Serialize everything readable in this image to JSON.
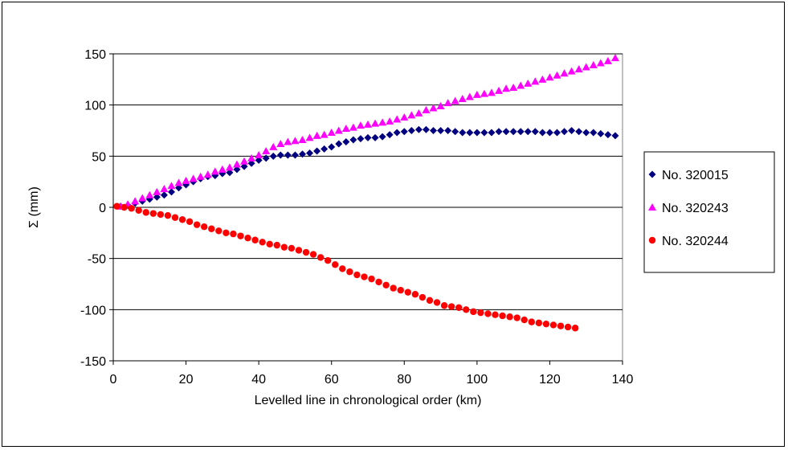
{
  "chart_data": {
    "type": "scatter",
    "xlabel": "Levelled line in chronological order (km)",
    "ylabel": "Σ (mm)",
    "xlim": [
      0,
      140
    ],
    "ylim": [
      -150,
      150
    ],
    "xticks": [
      0,
      20,
      40,
      60,
      80,
      100,
      120,
      140
    ],
    "yticks": [
      -150,
      -100,
      -50,
      0,
      50,
      100,
      150
    ],
    "grid": "horizontal",
    "legend_position": "right",
    "series": [
      {
        "name": "No. 320015",
        "color": "#000080",
        "marker": "diamond",
        "x": [
          2,
          4,
          6,
          8,
          10,
          12,
          14,
          16,
          18,
          20,
          22,
          24,
          26,
          28,
          30,
          32,
          34,
          36,
          38,
          40,
          42,
          44,
          46,
          48,
          50,
          52,
          54,
          56,
          58,
          60,
          62,
          64,
          66,
          68,
          70,
          72,
          74,
          76,
          78,
          80,
          82,
          84,
          86,
          88,
          90,
          92,
          94,
          96,
          98,
          100,
          102,
          104,
          106,
          108,
          110,
          112,
          114,
          116,
          118,
          120,
          122,
          124,
          126,
          128,
          130,
          132,
          134,
          136,
          138
        ],
        "y": [
          1,
          2,
          4,
          6,
          8,
          10,
          12,
          15,
          19,
          22,
          25,
          28,
          30,
          31,
          33,
          34,
          37,
          40,
          43,
          46,
          48,
          50,
          51,
          51,
          51,
          52,
          53,
          55,
          57,
          59,
          62,
          64,
          66,
          67,
          68,
          68,
          69,
          71,
          73,
          74,
          75,
          76,
          76,
          75,
          75,
          75,
          74,
          73,
          73,
          73,
          73,
          73,
          74,
          74,
          74,
          74,
          74,
          74,
          73,
          73,
          73,
          74,
          75,
          74,
          73,
          73,
          72,
          71,
          70
        ]
      },
      {
        "name": "No. 320243",
        "color": "#FF00FF",
        "marker": "triangle",
        "x": [
          2,
          4,
          6,
          8,
          10,
          12,
          14,
          16,
          18,
          20,
          22,
          24,
          26,
          28,
          30,
          32,
          34,
          36,
          38,
          40,
          42,
          44,
          46,
          48,
          50,
          52,
          54,
          56,
          58,
          60,
          62,
          64,
          66,
          68,
          70,
          72,
          74,
          76,
          78,
          80,
          82,
          84,
          86,
          88,
          90,
          92,
          94,
          96,
          98,
          100,
          102,
          104,
          106,
          108,
          110,
          112,
          114,
          116,
          118,
          120,
          122,
          124,
          126,
          128,
          130,
          132,
          134,
          136,
          138
        ],
        "y": [
          1,
          3,
          6,
          9,
          12,
          15,
          18,
          21,
          24,
          26,
          28,
          30,
          32,
          35,
          37,
          39,
          42,
          45,
          48,
          51,
          55,
          59,
          62,
          64,
          65,
          66,
          68,
          70,
          71,
          73,
          75,
          77,
          78,
          80,
          81,
          82,
          83,
          84,
          86,
          88,
          90,
          92,
          95,
          97,
          99,
          102,
          104,
          106,
          108,
          110,
          111,
          112,
          114,
          116,
          117,
          119,
          121,
          123,
          125,
          127,
          129,
          131,
          133,
          135,
          137,
          139,
          141,
          143,
          146
        ]
      },
      {
        "name": "No. 320244",
        "color": "#FF0000",
        "marker": "circle",
        "x": [
          1,
          3,
          5,
          7,
          9,
          11,
          13,
          15,
          17,
          19,
          21,
          23,
          25,
          27,
          29,
          31,
          33,
          35,
          37,
          39,
          41,
          43,
          45,
          47,
          49,
          51,
          53,
          55,
          57,
          59,
          61,
          63,
          65,
          67,
          69,
          71,
          73,
          75,
          77,
          79,
          81,
          83,
          85,
          87,
          89,
          91,
          93,
          95,
          97,
          99,
          101,
          103,
          105,
          107,
          109,
          111,
          113,
          115,
          117,
          119,
          121,
          123,
          125,
          127
        ],
        "y": [
          1,
          0,
          -1,
          -3,
          -5,
          -6,
          -7,
          -8,
          -10,
          -12,
          -14,
          -17,
          -19,
          -21,
          -23,
          -25,
          -26,
          -28,
          -30,
          -32,
          -34,
          -36,
          -37,
          -39,
          -40,
          -42,
          -44,
          -46,
          -49,
          -52,
          -56,
          -60,
          -63,
          -66,
          -68,
          -70,
          -73,
          -76,
          -79,
          -81,
          -83,
          -85,
          -88,
          -91,
          -93,
          -96,
          -97,
          -98,
          -100,
          -102,
          -103,
          -104,
          -105,
          -106,
          -107,
          -108,
          -110,
          -112,
          -113,
          -114,
          -115,
          -116,
          -117,
          -118
        ]
      }
    ]
  }
}
